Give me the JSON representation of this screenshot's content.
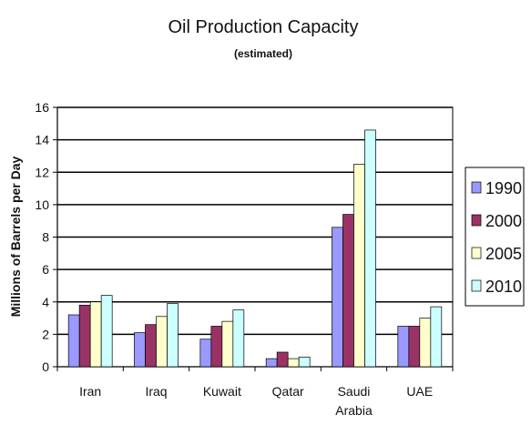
{
  "chart_data": {
    "type": "bar",
    "title": "Oil Production Capacity",
    "subtitle": "(estimated)",
    "ylabel": "Millions of Barrels per Day",
    "xlabel": "",
    "ylim": [
      0,
      16
    ],
    "yticks": [
      0,
      2,
      4,
      6,
      8,
      10,
      12,
      14,
      16
    ],
    "grid": true,
    "legend_position": "right",
    "categories": [
      [
        "Iran"
      ],
      [
        "Iraq"
      ],
      [
        "Kuwait"
      ],
      [
        "Qatar"
      ],
      [
        "Saudi",
        "Arabia"
      ],
      [
        "UAE"
      ]
    ],
    "series": [
      {
        "name": "1990",
        "color": "#9999ff",
        "values": [
          3.2,
          2.1,
          1.7,
          0.5,
          8.6,
          2.5
        ]
      },
      {
        "name": "2000",
        "color": "#993366",
        "values": [
          3.8,
          2.6,
          2.5,
          0.9,
          9.4,
          2.5
        ]
      },
      {
        "name": "2005",
        "color": "#ffffcc",
        "values": [
          4.0,
          3.1,
          2.8,
          0.5,
          12.5,
          3.0
        ]
      },
      {
        "name": "2010",
        "color": "#ccffff",
        "values": [
          4.4,
          3.9,
          3.5,
          0.6,
          14.6,
          3.7
        ]
      }
    ]
  }
}
